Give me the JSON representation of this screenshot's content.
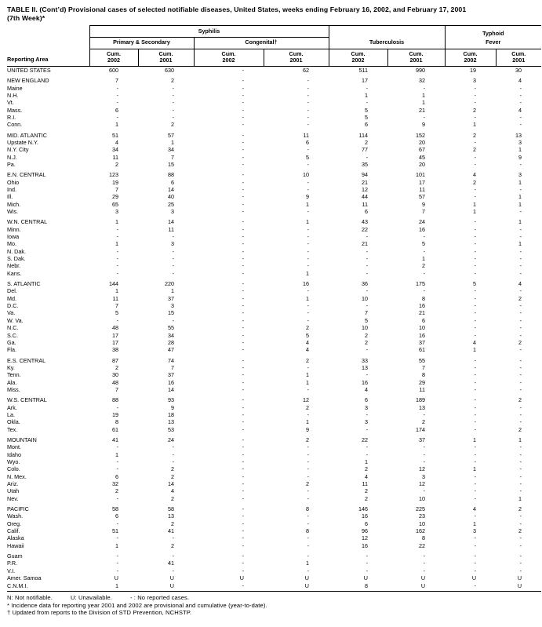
{
  "title": {
    "line1": "TABLE II. (Cont’d) Provisional cases of selected notifiable diseases, United States, weeks ending February 16, 2002, and February 17, 2001",
    "line2": "(7th Week)*"
  },
  "header": {
    "reporting_area": "Reporting Area",
    "syphilis": "Syphilis",
    "primary_secondary": "Primary & Secondary",
    "congenital": "Congenital†",
    "tuberculosis": "Tuberculosis",
    "typhoid_fever": "Typhoid\nFever"
  },
  "table": {
    "subcolumns": [
      {
        "group": "primary-secondary",
        "line1": "Cum.",
        "line2": "2002"
      },
      {
        "group": "primary-secondary",
        "line1": "Cum.",
        "line2": "2001"
      },
      {
        "group": "congenital",
        "line1": "Cum.",
        "line2": "2002"
      },
      {
        "group": "congenital",
        "line1": "Cum.",
        "line2": "2001"
      },
      {
        "group": "tuberculosis",
        "line1": "Cum.",
        "line2": "2002"
      },
      {
        "group": "tuberculosis",
        "line1": "Cum.",
        "line2": "2001"
      },
      {
        "group": "typhoid-fever",
        "line1": "Cum.",
        "line2": "2002"
      },
      {
        "group": "typhoid-fever",
        "line1": "Cum.",
        "line2": "2001"
      }
    ],
    "rows": [
      {
        "area": "UNITED STATES",
        "values": [
          "600",
          "630",
          "-",
          "62",
          "511",
          "990",
          "19",
          "30"
        ],
        "section_start": false
      },
      {
        "area": "NEW ENGLAND",
        "values": [
          "7",
          "2",
          "-",
          "-",
          "17",
          "32",
          "3",
          "4"
        ],
        "section_start": true
      },
      {
        "area": "Maine",
        "values": [
          "-",
          "-",
          "-",
          "-",
          "-",
          "-",
          "-",
          "-"
        ]
      },
      {
        "area": "N.H.",
        "values": [
          "-",
          "-",
          "-",
          "-",
          "1",
          "1",
          "-",
          "-"
        ]
      },
      {
        "area": "Vt.",
        "values": [
          "-",
          "-",
          "-",
          "-",
          "-",
          "1",
          "-",
          "-"
        ]
      },
      {
        "area": "Mass.",
        "values": [
          "6",
          "-",
          "-",
          "-",
          "5",
          "21",
          "2",
          "4"
        ]
      },
      {
        "area": "R.I.",
        "values": [
          "-",
          "-",
          "-",
          "-",
          "5",
          "-",
          "-",
          "-"
        ]
      },
      {
        "area": "Conn.",
        "values": [
          "1",
          "2",
          "-",
          "-",
          "6",
          "9",
          "1",
          "-"
        ]
      },
      {
        "area": "MID. ATLANTIC",
        "values": [
          "51",
          "57",
          "-",
          "11",
          "114",
          "152",
          "2",
          "13"
        ],
        "section_start": true
      },
      {
        "area": "Upstate N.Y.",
        "values": [
          "4",
          "1",
          "-",
          "6",
          "2",
          "20",
          "-",
          "3"
        ]
      },
      {
        "area": "N.Y. City",
        "values": [
          "34",
          "34",
          "-",
          "-",
          "77",
          "67",
          "2",
          "1"
        ]
      },
      {
        "area": "N.J.",
        "values": [
          "11",
          "7",
          "-",
          "5",
          "-",
          "45",
          "-",
          "9"
        ]
      },
      {
        "area": "Pa.",
        "values": [
          "2",
          "15",
          "-",
          "-",
          "35",
          "20",
          "-",
          "-"
        ]
      },
      {
        "area": "E.N. CENTRAL",
        "values": [
          "123",
          "88",
          "-",
          "10",
          "94",
          "101",
          "4",
          "3"
        ],
        "section_start": true
      },
      {
        "area": "Ohio",
        "values": [
          "19",
          "6",
          "-",
          "-",
          "21",
          "17",
          "2",
          "1"
        ]
      },
      {
        "area": "Ind.",
        "values": [
          "7",
          "14",
          "-",
          "-",
          "12",
          "11",
          "-",
          "-"
        ]
      },
      {
        "area": "Ill.",
        "values": [
          "29",
          "40",
          "-",
          "9",
          "44",
          "57",
          "-",
          "1"
        ]
      },
      {
        "area": "Mich.",
        "values": [
          "65",
          "25",
          "-",
          "1",
          "11",
          "9",
          "1",
          "1"
        ]
      },
      {
        "area": "Wis.",
        "values": [
          "3",
          "3",
          "-",
          "-",
          "6",
          "7",
          "1",
          "-"
        ]
      },
      {
        "area": "W.N. CENTRAL",
        "values": [
          "1",
          "14",
          "-",
          "1",
          "43",
          "24",
          "-",
          "1"
        ],
        "section_start": true
      },
      {
        "area": "Minn.",
        "values": [
          "-",
          "11",
          "-",
          "-",
          "22",
          "16",
          "-",
          "-"
        ]
      },
      {
        "area": "Iowa",
        "values": [
          "-",
          "-",
          "-",
          "-",
          "-",
          "-",
          "-",
          "-"
        ]
      },
      {
        "area": "Mo.",
        "values": [
          "1",
          "3",
          "-",
          "-",
          "21",
          "5",
          "-",
          "1"
        ]
      },
      {
        "area": "N. Dak.",
        "values": [
          "-",
          "-",
          "-",
          "-",
          "-",
          "-",
          "-",
          "-"
        ]
      },
      {
        "area": "S. Dak.",
        "values": [
          "-",
          "-",
          "-",
          "-",
          "-",
          "1",
          "-",
          "-"
        ]
      },
      {
        "area": "Nebr.",
        "values": [
          "-",
          "-",
          "-",
          "-",
          "-",
          "2",
          "-",
          "-"
        ]
      },
      {
        "area": "Kans.",
        "values": [
          "-",
          "-",
          "-",
          "1",
          "-",
          "-",
          "-",
          "-"
        ]
      },
      {
        "area": "S. ATLANTIC",
        "values": [
          "144",
          "220",
          "-",
          "16",
          "36",
          "175",
          "5",
          "4"
        ],
        "section_start": true
      },
      {
        "area": "Del.",
        "values": [
          "1",
          "1",
          "-",
          "-",
          "-",
          "-",
          "-",
          "-"
        ]
      },
      {
        "area": "Md.",
        "values": [
          "11",
          "37",
          "-",
          "1",
          "10",
          "8",
          "-",
          "2"
        ]
      },
      {
        "area": "D.C.",
        "values": [
          "7",
          "3",
          "-",
          "-",
          "-",
          "16",
          "-",
          "-"
        ]
      },
      {
        "area": "Va.",
        "values": [
          "5",
          "15",
          "-",
          "-",
          "7",
          "21",
          "-",
          "-"
        ]
      },
      {
        "area": "W. Va.",
        "values": [
          "-",
          "-",
          "-",
          "-",
          "5",
          "6",
          "-",
          "-"
        ]
      },
      {
        "area": "N.C.",
        "values": [
          "48",
          "55",
          "-",
          "2",
          "10",
          "10",
          "-",
          "-"
        ]
      },
      {
        "area": "S.C.",
        "values": [
          "17",
          "34",
          "-",
          "5",
          "2",
          "16",
          "-",
          "-"
        ]
      },
      {
        "area": "Ga.",
        "values": [
          "17",
          "28",
          "-",
          "4",
          "2",
          "37",
          "4",
          "2"
        ]
      },
      {
        "area": "Fla.",
        "values": [
          "38",
          "47",
          "-",
          "4",
          "-",
          "61",
          "1",
          "-"
        ]
      },
      {
        "area": "E.S. CENTRAL",
        "values": [
          "87",
          "74",
          "-",
          "2",
          "33",
          "55",
          "-",
          "-"
        ],
        "section_start": true
      },
      {
        "area": "Ky.",
        "values": [
          "2",
          "7",
          "-",
          "-",
          "13",
          "7",
          "-",
          "-"
        ]
      },
      {
        "area": "Tenn.",
        "values": [
          "30",
          "37",
          "-",
          "1",
          "-",
          "8",
          "-",
          "-"
        ]
      },
      {
        "area": "Ala.",
        "values": [
          "48",
          "16",
          "-",
          "1",
          "16",
          "29",
          "-",
          "-"
        ]
      },
      {
        "area": "Miss.",
        "values": [
          "7",
          "14",
          "-",
          "-",
          "4",
          "11",
          "-",
          "-"
        ]
      },
      {
        "area": "W.S. CENTRAL",
        "values": [
          "88",
          "93",
          "-",
          "12",
          "6",
          "189",
          "-",
          "2"
        ],
        "section_start": true
      },
      {
        "area": "Ark.",
        "values": [
          "-",
          "9",
          "-",
          "2",
          "3",
          "13",
          "-",
          "-"
        ]
      },
      {
        "area": "La.",
        "values": [
          "19",
          "18",
          "-",
          "-",
          "-",
          "-",
          "-",
          "-"
        ]
      },
      {
        "area": "Okla.",
        "values": [
          "8",
          "13",
          "-",
          "1",
          "3",
          "2",
          "-",
          "-"
        ]
      },
      {
        "area": "Tex.",
        "values": [
          "61",
          "53",
          "-",
          "9",
          "-",
          "174",
          "-",
          "2"
        ]
      },
      {
        "area": "MOUNTAIN",
        "values": [
          "41",
          "24",
          "-",
          "2",
          "22",
          "37",
          "1",
          "1"
        ],
        "section_start": true
      },
      {
        "area": "Mont.",
        "values": [
          "-",
          "-",
          "-",
          "-",
          "-",
          "-",
          "-",
          "-"
        ]
      },
      {
        "area": "Idaho",
        "values": [
          "1",
          "-",
          "-",
          "-",
          "-",
          "-",
          "-",
          "-"
        ]
      },
      {
        "area": "Wyo.",
        "values": [
          "-",
          "-",
          "-",
          "-",
          "1",
          "-",
          "-",
          "-"
        ]
      },
      {
        "area": "Colo.",
        "values": [
          "-",
          "2",
          "-",
          "-",
          "2",
          "12",
          "1",
          "-"
        ]
      },
      {
        "area": "N. Mex.",
        "values": [
          "6",
          "2",
          "-",
          "-",
          "4",
          "3",
          "-",
          "-"
        ]
      },
      {
        "area": "Ariz.",
        "values": [
          "32",
          "14",
          "-",
          "2",
          "11",
          "12",
          "-",
          "-"
        ]
      },
      {
        "area": "Utah",
        "values": [
          "2",
          "4",
          "-",
          "-",
          "2",
          "-",
          "-",
          "-"
        ]
      },
      {
        "area": "Nev.",
        "values": [
          "-",
          "2",
          "-",
          "-",
          "2",
          "10",
          "-",
          "1"
        ]
      },
      {
        "area": "PACIFIC",
        "values": [
          "58",
          "58",
          "-",
          "8",
          "146",
          "225",
          "4",
          "2"
        ],
        "section_start": true
      },
      {
        "area": "Wash.",
        "values": [
          "6",
          "13",
          "-",
          "-",
          "16",
          "23",
          "-",
          "-"
        ]
      },
      {
        "area": "Oreg.",
        "values": [
          "-",
          "2",
          "-",
          "-",
          "6",
          "10",
          "1",
          "-"
        ]
      },
      {
        "area": "Calif.",
        "values": [
          "51",
          "41",
          "-",
          "8",
          "96",
          "162",
          "3",
          "2"
        ]
      },
      {
        "area": "Alaska",
        "values": [
          "-",
          "-",
          "-",
          "-",
          "12",
          "8",
          "-",
          "-"
        ]
      },
      {
        "area": "Hawaii",
        "values": [
          "1",
          "2",
          "-",
          "-",
          "16",
          "22",
          "-",
          "-"
        ]
      },
      {
        "area": "Guam",
        "values": [
          "-",
          "-",
          "-",
          "-",
          "-",
          "-",
          "-",
          "-"
        ],
        "section_start": true
      },
      {
        "area": "P.R.",
        "values": [
          "-",
          "41",
          "-",
          "1",
          "-",
          "-",
          "-",
          "-"
        ]
      },
      {
        "area": "V.I.",
        "values": [
          "-",
          "-",
          "-",
          "-",
          "-",
          "-",
          "-",
          "-"
        ]
      },
      {
        "area": "Amer. Samoa",
        "values": [
          "U",
          "U",
          "U",
          "U",
          "U",
          "U",
          "U",
          "U"
        ]
      },
      {
        "area": "C.N.M.I.",
        "values": [
          "1",
          "U",
          "-",
          "U",
          "8",
          "U",
          "-",
          "U"
        ]
      }
    ]
  },
  "footnotes": {
    "legend": [
      "N: Not notifiable.",
      "U: Unavailable.",
      "- : No reported cases."
    ],
    "star": "* Incidence data for reporting year 2001 and 2002 are provisional and cumulative (year-to-date).",
    "dagger": "† Updated from reports to the Division of STD Prevention, NCHSTP."
  },
  "colors": {
    "text": "#000000",
    "background": "#ffffff",
    "border": "#000000"
  }
}
